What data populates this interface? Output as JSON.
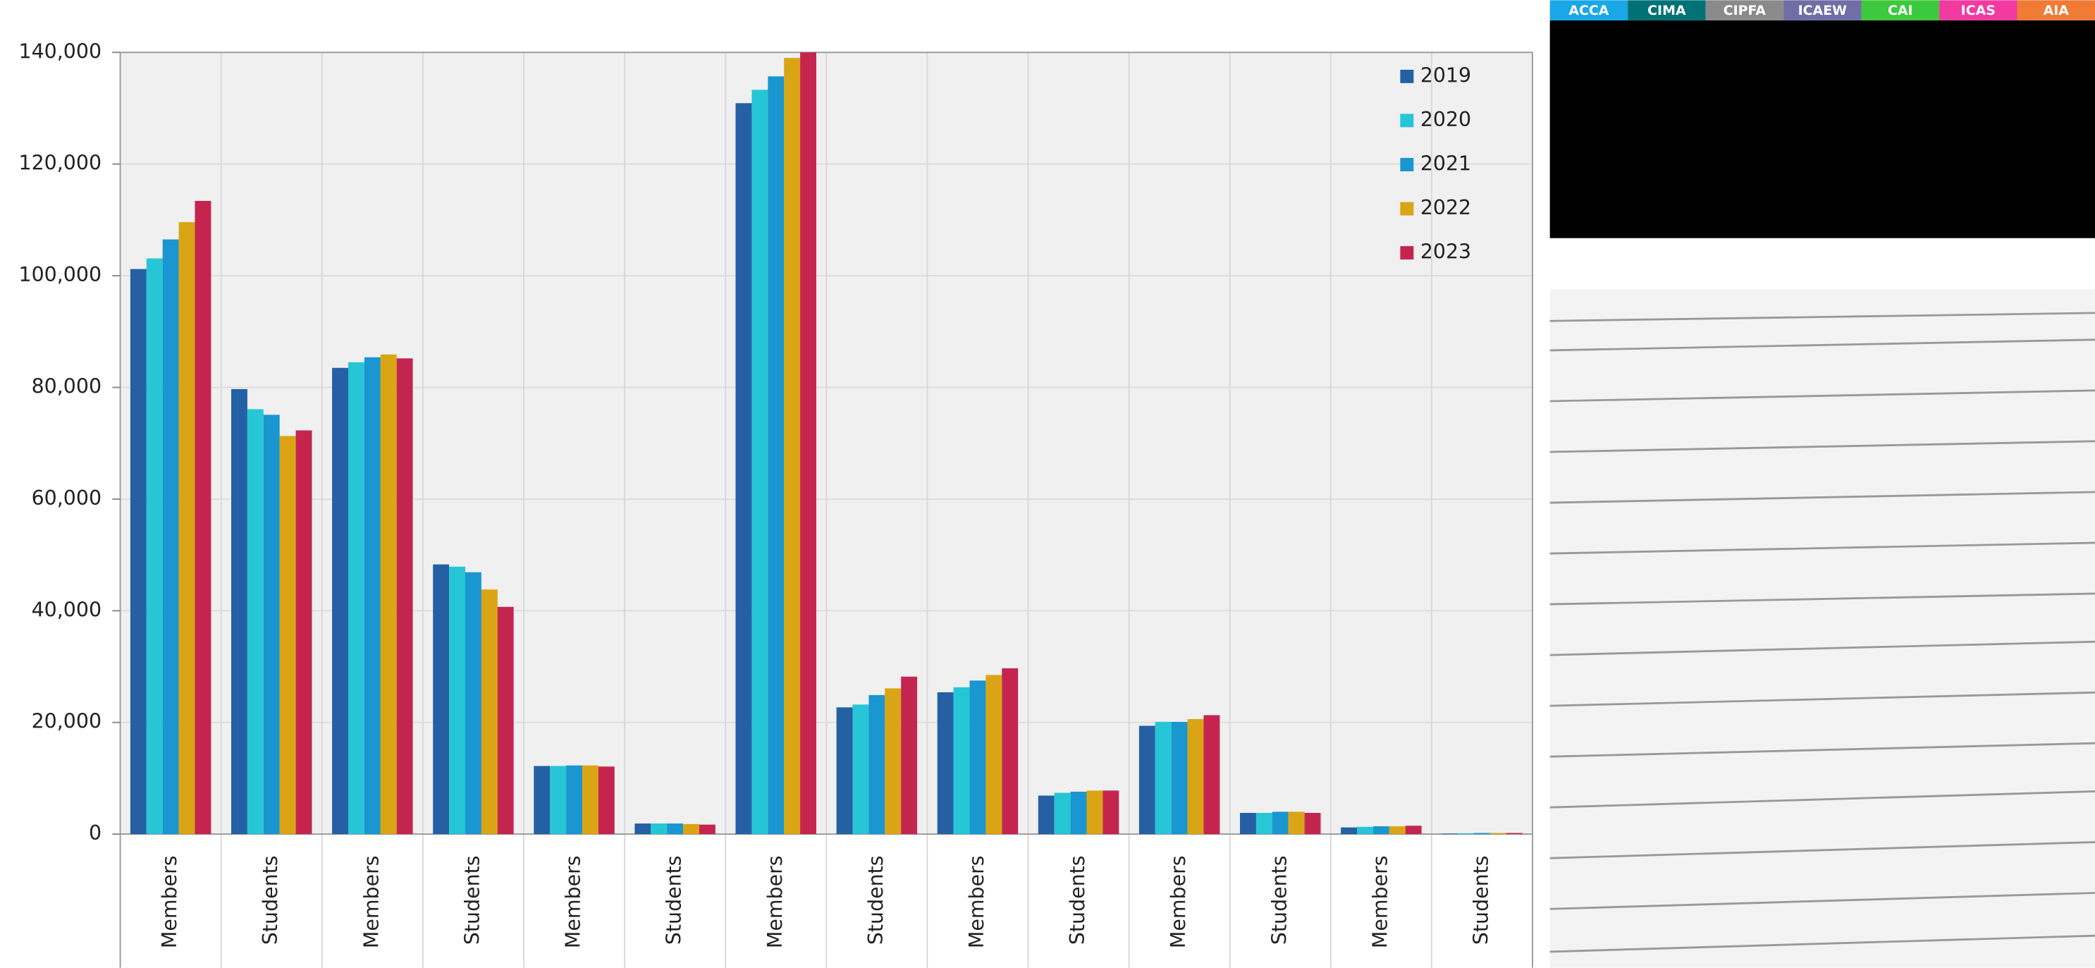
{
  "tabs": [
    {
      "label": "ACCA",
      "color": "#1aa7e8"
    },
    {
      "label": "CIMA",
      "color": "#007174"
    },
    {
      "label": "CIPFA",
      "color": "#8a8a8a"
    },
    {
      "label": "ICAEW",
      "color": "#6f6ea6"
    },
    {
      "label": "CAI",
      "color": "#3dc93d"
    },
    {
      "label": "ICAS",
      "color": "#f23aa0"
    },
    {
      "label": "AIA",
      "color": "#f07b35"
    }
  ],
  "chart_data": {
    "type": "bar",
    "categories": [
      "Members",
      "Students",
      "Members",
      "Students",
      "Members",
      "Students",
      "Members",
      "Students",
      "Members",
      "Students",
      "Members",
      "Students",
      "Members",
      "Students"
    ],
    "series": [
      {
        "name": "2019",
        "color": "#2460a3",
        "values": [
          101200,
          79700,
          83500,
          48300,
          12200,
          1900,
          130900,
          22700,
          25400,
          6900,
          19400,
          3800,
          1200,
          100
        ]
      },
      {
        "name": "2020",
        "color": "#26c6d6",
        "values": [
          103100,
          76100,
          84500,
          47900,
          12200,
          1900,
          133300,
          23200,
          26300,
          7400,
          20100,
          3800,
          1300,
          150
        ]
      },
      {
        "name": "2021",
        "color": "#1a96d0",
        "values": [
          106500,
          75100,
          85400,
          46900,
          12300,
          1900,
          135700,
          24900,
          27500,
          7600,
          20100,
          4000,
          1400,
          200
        ]
      },
      {
        "name": "2022",
        "color": "#d9a514",
        "values": [
          109600,
          71300,
          85900,
          43800,
          12300,
          1800,
          139000,
          26100,
          28500,
          7800,
          20600,
          4000,
          1400,
          200
        ]
      },
      {
        "name": "2023",
        "color": "#c4254f",
        "values": [
          113400,
          72300,
          85200,
          40700,
          12100,
          1700,
          140000,
          28200,
          29700,
          7800,
          21300,
          3800,
          1500,
          200
        ]
      }
    ],
    "ylim": [
      0,
      140000
    ],
    "yticks": [
      0,
      {
        "value": 20000,
        "label": "20,000"
      },
      {
        "value": 40000,
        "label": "40,000"
      },
      {
        "value": 60000,
        "label": "60,000"
      },
      {
        "value": 80000,
        "label": "80,000"
      },
      {
        "value": 100000,
        "label": "100,000"
      },
      {
        "value": 120000,
        "label": "120,000"
      },
      {
        "value": 140000,
        "label": "140,000"
      }
    ],
    "grid": true,
    "legend": "top-right"
  }
}
